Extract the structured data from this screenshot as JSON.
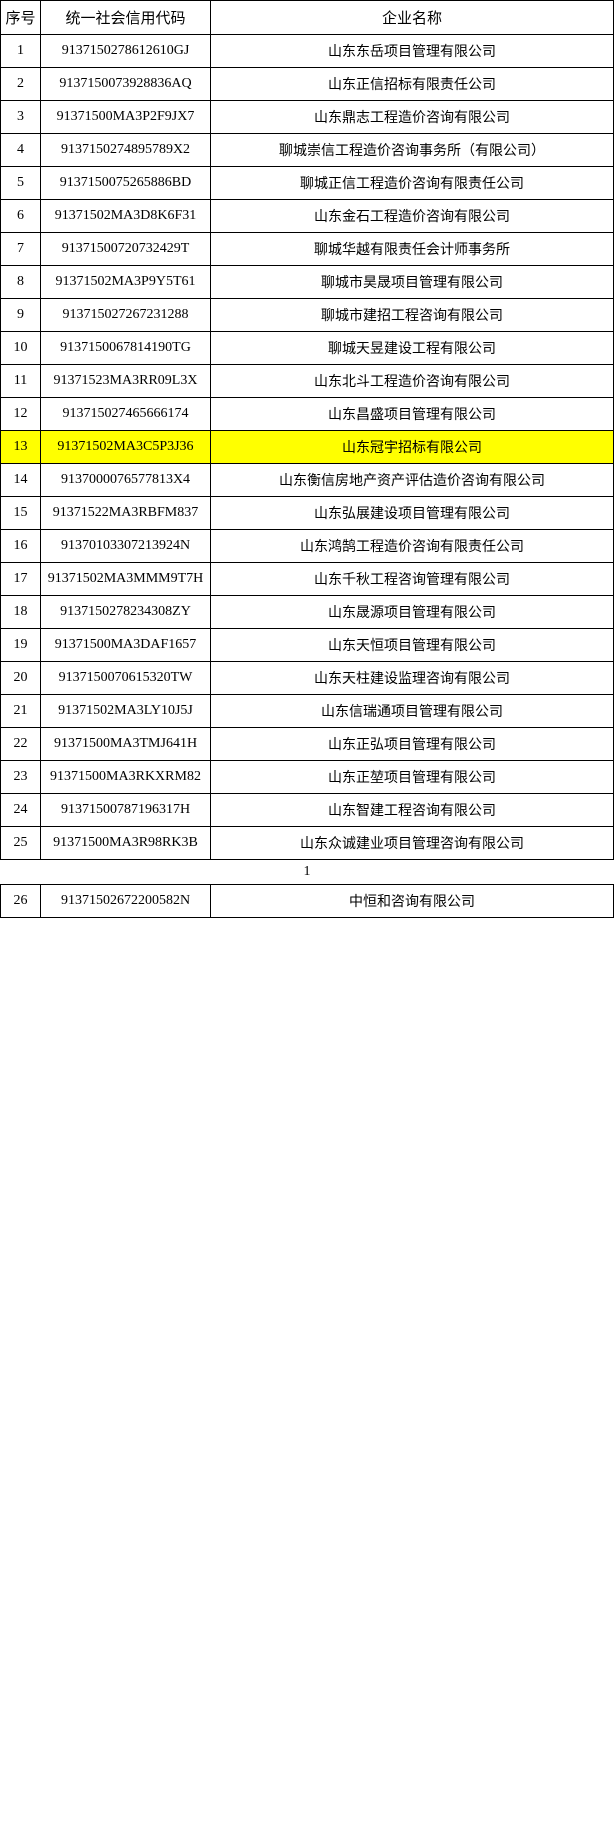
{
  "header": {
    "seq": "序号",
    "code": "统一社会信用代码",
    "name": "企业名称"
  },
  "highlight_row_index": 12,
  "highlight_color": "#ffff00",
  "rows_page1": [
    {
      "seq": "1",
      "code": "9137150278612610GJ",
      "name": "山东东岳项目管理有限公司"
    },
    {
      "seq": "2",
      "code": "9137150073928836AQ",
      "name": "山东正信招标有限责任公司"
    },
    {
      "seq": "3",
      "code": "91371500MA3P2F9JX7",
      "name": "山东鼎志工程造价咨询有限公司"
    },
    {
      "seq": "4",
      "code": "9137150274895789X2",
      "name": "聊城崇信工程造价咨询事务所（有限公司）"
    },
    {
      "seq": "5",
      "code": "9137150075265886BD",
      "name": "聊城正信工程造价咨询有限责任公司"
    },
    {
      "seq": "6",
      "code": "91371502MA3D8K6F31",
      "name": "山东金石工程造价咨询有限公司"
    },
    {
      "seq": "7",
      "code": "91371500720732429T",
      "name": "聊城华越有限责任会计师事务所"
    },
    {
      "seq": "8",
      "code": "91371502MA3P9Y5T61",
      "name": "聊城市昊晟项目管理有限公司"
    },
    {
      "seq": "9",
      "code": "913715027267231288",
      "name": "聊城市建招工程咨询有限公司"
    },
    {
      "seq": "10",
      "code": "9137150067814190TG",
      "name": "聊城天昱建设工程有限公司"
    },
    {
      "seq": "11",
      "code": "91371523MA3RR09L3X",
      "name": "山东北斗工程造价咨询有限公司"
    },
    {
      "seq": "12",
      "code": "913715027465666174",
      "name": "山东昌盛项目管理有限公司"
    },
    {
      "seq": "13",
      "code": "91371502MA3C5P3J36",
      "name": "山东冠宇招标有限公司"
    },
    {
      "seq": "14",
      "code": "9137000076577813X4",
      "name": "山东衡信房地产资产评估造价咨询有限公司"
    },
    {
      "seq": "15",
      "code": "91371522MA3RBFM837",
      "name": "山东弘展建设项目管理有限公司"
    },
    {
      "seq": "16",
      "code": "91370103307213924N",
      "name": "山东鸿鹄工程造价咨询有限责任公司"
    },
    {
      "seq": "17",
      "code": "91371502MA3MMM9T7H",
      "name": "山东千秋工程咨询管理有限公司"
    },
    {
      "seq": "18",
      "code": "9137150278234308ZY",
      "name": "山东晟源项目管理有限公司"
    },
    {
      "seq": "19",
      "code": "91371500MA3DAF1657",
      "name": "山东天恒项目管理有限公司"
    },
    {
      "seq": "20",
      "code": "9137150070615320TW",
      "name": "山东天柱建设监理咨询有限公司"
    },
    {
      "seq": "21",
      "code": "91371502MA3LY10J5J",
      "name": "山东信瑞通项目管理有限公司"
    },
    {
      "seq": "22",
      "code": "91371500MA3TMJ641H",
      "name": "山东正弘项目管理有限公司"
    },
    {
      "seq": "23",
      "code": "91371500MA3RKXRM82",
      "name": "山东正堃项目管理有限公司"
    },
    {
      "seq": "24",
      "code": "91371500787196317H",
      "name": "山东智建工程咨询有限公司"
    },
    {
      "seq": "25",
      "code": "91371500MA3R98RK3B",
      "name": "山东众诚建业项目管理咨询有限公司"
    }
  ],
  "page_number": "1",
  "rows_page2": [
    {
      "seq": "26",
      "code": "91371502672200582N",
      "name": "中恒和咨询有限公司"
    }
  ]
}
